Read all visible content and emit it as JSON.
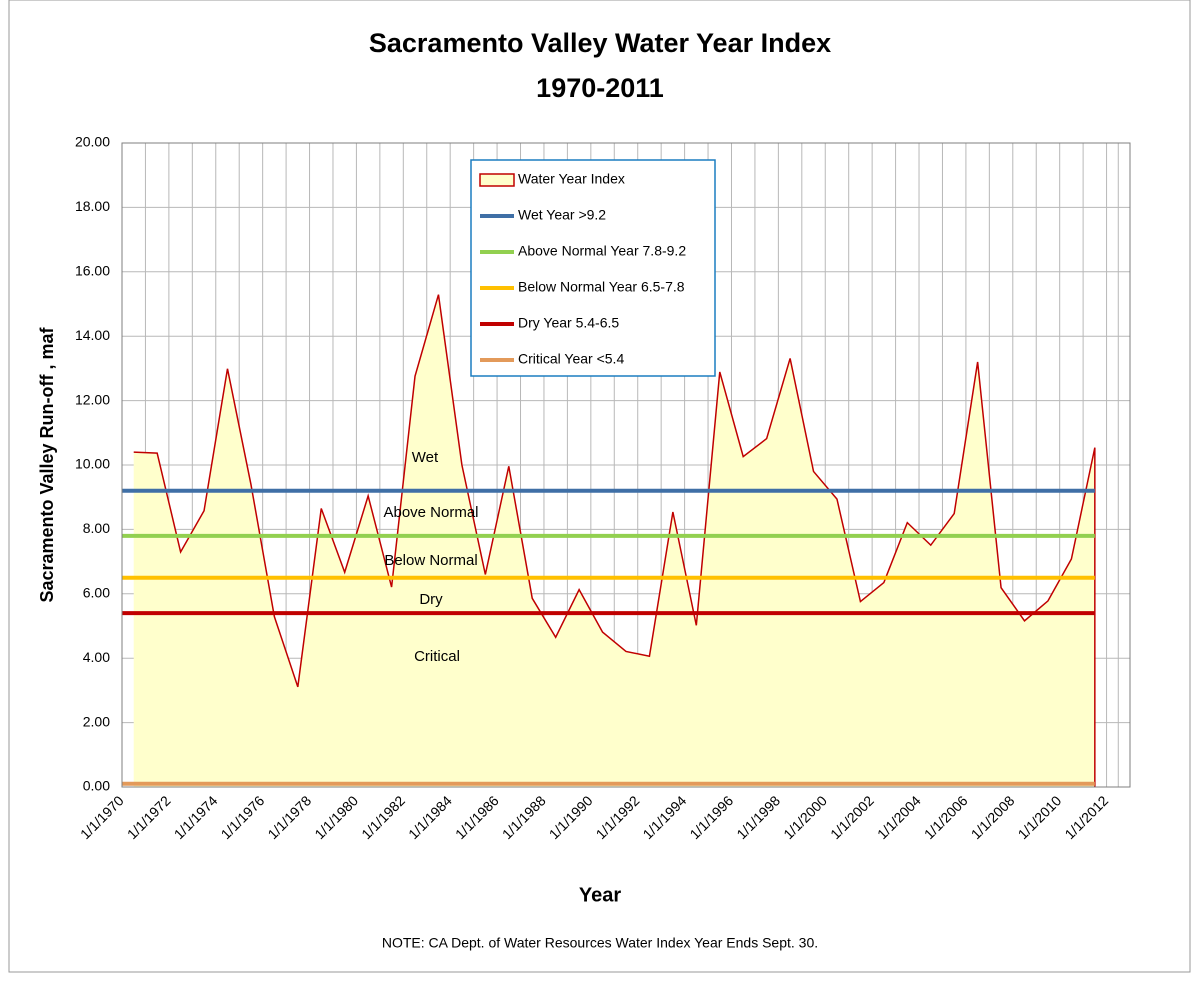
{
  "chart_data": {
    "type": "area",
    "title": "Sacramento Valley Water Year Index",
    "subtitle": "1970-2011",
    "x_label": "Year",
    "y_label": "Sacramento Valley Run-off , maf",
    "note": "NOTE:  CA Dept. of Water Resources Water Index Year Ends Sept. 30.",
    "annotations": [
      "Wet",
      "Above Normal",
      "Below Normal",
      "Dry",
      "Critical"
    ],
    "xlim": [
      1970,
      2013
    ],
    "xticks": [
      {
        "value": 1970,
        "label": "1/1/1970"
      },
      {
        "value": 1972,
        "label": "1/1/1972"
      },
      {
        "value": 1974,
        "label": "1/1/1974"
      },
      {
        "value": 1976,
        "label": "1/1/1976"
      },
      {
        "value": 1978,
        "label": "1/1/1978"
      },
      {
        "value": 1980,
        "label": "1/1/1980"
      },
      {
        "value": 1982,
        "label": "1/1/1982"
      },
      {
        "value": 1984,
        "label": "1/1/1984"
      },
      {
        "value": 1986,
        "label": "1/1/1986"
      },
      {
        "value": 1988,
        "label": "1/1/1988"
      },
      {
        "value": 1990,
        "label": "1/1/1990"
      },
      {
        "value": 1992,
        "label": "1/1/1992"
      },
      {
        "value": 1994,
        "label": "1/1/1994"
      },
      {
        "value": 1996,
        "label": "1/1/1996"
      },
      {
        "value": 1998,
        "label": "1/1/1998"
      },
      {
        "value": 2000,
        "label": "1/1/2000"
      },
      {
        "value": 2002,
        "label": "1/1/2002"
      },
      {
        "value": 2004,
        "label": "1/1/2004"
      },
      {
        "value": 2006,
        "label": "1/1/2006"
      },
      {
        "value": 2008,
        "label": "1/1/2008"
      },
      {
        "value": 2010,
        "label": "1/1/2010"
      },
      {
        "value": 2012,
        "label": "1/1/2012"
      }
    ],
    "ylim": [
      0,
      20
    ],
    "yticks": [
      {
        "value": 0,
        "label": "0.00"
      },
      {
        "value": 2,
        "label": "2.00"
      },
      {
        "value": 4,
        "label": "4.00"
      },
      {
        "value": 6,
        "label": "6.00"
      },
      {
        "value": 8,
        "label": "8.00"
      },
      {
        "value": 10,
        "label": "10.00"
      },
      {
        "value": 12,
        "label": "12.00"
      },
      {
        "value": 14,
        "label": "14.00"
      },
      {
        "value": 16,
        "label": "16.00"
      },
      {
        "value": 18,
        "label": "18.00"
      },
      {
        "value": 20,
        "label": "20.00"
      }
    ],
    "grid": true,
    "series": [
      {
        "name": "Water Year Index",
        "color": "#c00000",
        "fill": "#ffffcc",
        "x": [
          1970.5,
          1971.5,
          1972.5,
          1973.5,
          1974.5,
          1975.5,
          1976.5,
          1977.5,
          1978.5,
          1979.5,
          1980.5,
          1981.5,
          1982.5,
          1983.5,
          1984.5,
          1985.5,
          1986.5,
          1987.5,
          1988.5,
          1989.5,
          1990.5,
          1991.5,
          1992.5,
          1993.5,
          1994.5,
          1995.5,
          1996.5,
          1997.5,
          1998.5,
          1999.5,
          2000.5,
          2001.5,
          2002.5,
          2003.5,
          2004.5,
          2005.5,
          2006.5,
          2007.5,
          2008.5,
          2009.5,
          2010.5,
          2011.5
        ],
        "values": [
          10.4,
          10.37,
          7.3,
          8.58,
          12.99,
          9.4,
          5.29,
          3.11,
          8.65,
          6.67,
          9.04,
          6.21,
          12.76,
          15.29,
          10.0,
          6.6,
          9.96,
          5.86,
          4.65,
          6.13,
          4.81,
          4.21,
          4.06,
          8.54,
          5.02,
          12.89,
          10.26,
          10.82,
          13.31,
          9.8,
          8.94,
          5.76,
          6.35,
          8.21,
          7.51,
          8.49,
          13.2,
          6.19,
          5.16,
          5.78,
          7.08,
          10.54
        ]
      },
      {
        "name": "Wet Year >9.2",
        "color": "#3f6fa6",
        "x": [
          1970,
          2011.5
        ],
        "values": [
          9.2,
          9.2
        ]
      },
      {
        "name": "Above Normal Year 7.8-9.2",
        "color": "#92d050",
        "x": [
          1970,
          2011.5
        ],
        "values": [
          7.8,
          7.8
        ]
      },
      {
        "name": "Below Normal Year 6.5-7.8",
        "color": "#ffc000",
        "x": [
          1970,
          2011.5
        ],
        "values": [
          6.5,
          6.5
        ]
      },
      {
        "name": "Dry Year 5.4-6.5",
        "color": "#c00000",
        "x": [
          1970,
          2011.5
        ],
        "values": [
          5.4,
          5.4
        ]
      },
      {
        "name": "Critical Year <5.4",
        "color": "#e39a5a",
        "x": [
          1970,
          2011.5
        ],
        "values": [
          0.1,
          0.1
        ]
      }
    ]
  }
}
